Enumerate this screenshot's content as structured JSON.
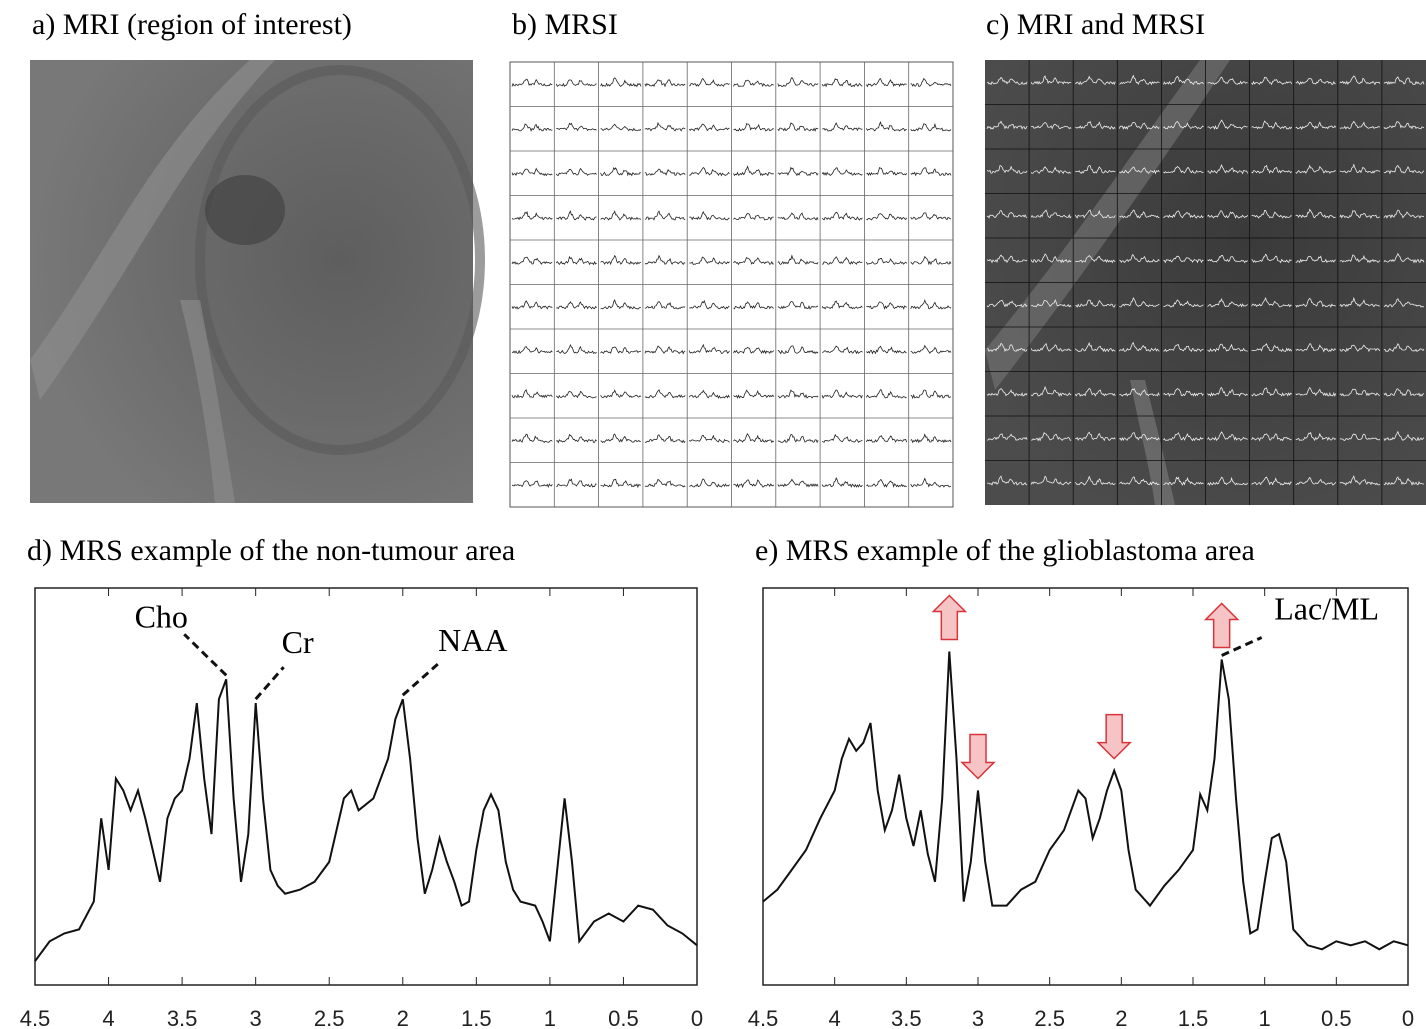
{
  "panels": [
    {
      "title": "a) MRI (region of interest)"
    },
    {
      "title": "b) MRSI"
    },
    {
      "title": "c) MRI and MRSI"
    }
  ],
  "chart_data": [
    {
      "type": "line",
      "title": "d) MRS example of the non-tumour area",
      "color": "#111111",
      "x": [
        4.5,
        4.4,
        4.3,
        4.2,
        4.1,
        4.05,
        4.0,
        3.95,
        3.9,
        3.85,
        3.8,
        3.75,
        3.7,
        3.65,
        3.6,
        3.55,
        3.5,
        3.45,
        3.4,
        3.35,
        3.3,
        3.25,
        3.2,
        3.15,
        3.1,
        3.05,
        3.0,
        2.95,
        2.9,
        2.85,
        2.8,
        2.7,
        2.6,
        2.5,
        2.4,
        2.35,
        2.3,
        2.2,
        2.1,
        2.05,
        2.0,
        1.95,
        1.9,
        1.85,
        1.8,
        1.75,
        1.7,
        1.65,
        1.6,
        1.55,
        1.5,
        1.45,
        1.4,
        1.35,
        1.3,
        1.25,
        1.2,
        1.1,
        1.05,
        1.0,
        0.95,
        0.9,
        0.85,
        0.8,
        0.7,
        0.6,
        0.5,
        0.4,
        0.3,
        0.2,
        0.1,
        0.0
      ],
      "values": [
        6,
        11,
        13,
        14,
        21,
        42,
        29,
        52,
        49,
        44,
        49,
        42,
        34,
        26,
        42,
        47,
        49,
        57,
        71,
        52,
        38,
        72,
        77,
        47,
        26,
        38,
        71,
        47,
        29,
        25,
        23,
        24,
        26,
        31,
        47,
        49,
        44,
        47,
        57,
        67,
        72,
        57,
        37,
        23,
        29,
        37,
        31,
        26,
        20,
        21,
        34,
        44,
        48,
        44,
        31,
        24,
        21,
        20,
        16,
        11,
        29,
        47,
        31,
        11,
        16,
        18,
        16,
        20,
        19,
        15,
        13,
        10
      ],
      "annotations": [
        "Cho",
        "Cr",
        "NAA"
      ],
      "xlim": [
        4.5,
        0
      ],
      "xticks": [
        4.5,
        4,
        3.5,
        3,
        2.5,
        2,
        1.5,
        1,
        0.5,
        0
      ],
      "ylim": [
        0,
        100
      ]
    },
    {
      "type": "line",
      "title": "e) MRS example of the glioblastoma area",
      "color": "#111111",
      "x": [
        4.5,
        4.4,
        4.3,
        4.2,
        4.1,
        4.0,
        3.95,
        3.9,
        3.85,
        3.8,
        3.75,
        3.7,
        3.65,
        3.6,
        3.55,
        3.5,
        3.45,
        3.4,
        3.35,
        3.3,
        3.25,
        3.2,
        3.15,
        3.1,
        3.05,
        3.0,
        2.95,
        2.9,
        2.8,
        2.7,
        2.6,
        2.5,
        2.4,
        2.3,
        2.25,
        2.2,
        2.15,
        2.1,
        2.05,
        2.0,
        1.95,
        1.9,
        1.8,
        1.7,
        1.6,
        1.5,
        1.45,
        1.4,
        1.35,
        1.3,
        1.25,
        1.2,
        1.15,
        1.1,
        1.05,
        1.0,
        0.95,
        0.9,
        0.85,
        0.8,
        0.7,
        0.6,
        0.5,
        0.4,
        0.3,
        0.2,
        0.1,
        0.0
      ],
      "values": [
        21,
        24,
        29,
        34,
        42,
        49,
        57,
        62,
        59,
        61,
        66,
        49,
        39,
        44,
        53,
        42,
        35,
        44,
        33,
        26,
        47,
        84,
        57,
        21,
        31,
        49,
        31,
        20,
        20,
        24,
        26,
        34,
        39,
        49,
        47,
        37,
        42,
        49,
        54,
        49,
        34,
        24,
        20,
        25,
        29,
        34,
        48,
        44,
        57,
        82,
        72,
        47,
        26,
        13,
        14,
        26,
        37,
        38,
        31,
        14,
        10,
        9,
        11,
        10,
        11,
        9,
        11,
        10
      ],
      "annotations": [
        "Lac/ML"
      ],
      "xlim": [
        4.5,
        0
      ],
      "xticks": [
        4.5,
        4,
        3.5,
        3,
        2.5,
        2,
        1.5,
        1,
        0.5,
        0
      ],
      "ylim": [
        0,
        100
      ]
    }
  ]
}
